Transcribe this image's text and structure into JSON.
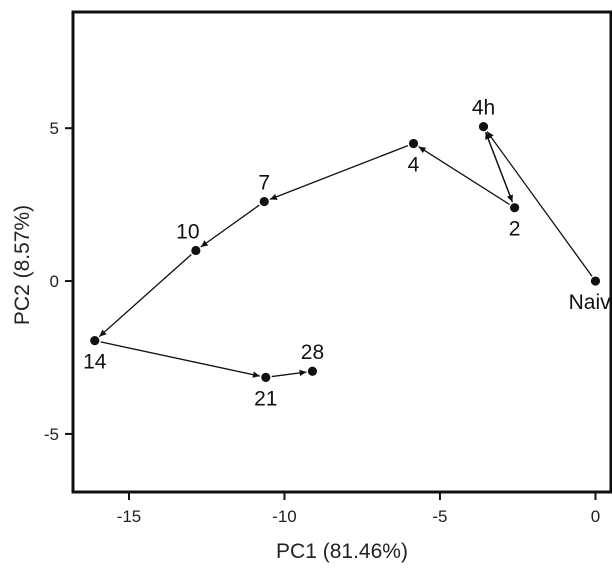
{
  "chart_data": {
    "type": "scatter",
    "title": "",
    "xlabel": "PC1 (81.46%)",
    "ylabel": "PC2 (8.57%)",
    "xlim": [
      -16.8,
      0.5
    ],
    "ylim": [
      -6.9,
      8.8
    ],
    "xticks": [
      {
        "value": -15,
        "label": "-15"
      },
      {
        "value": -10,
        "label": "-10"
      },
      {
        "value": -5,
        "label": "-5"
      },
      {
        "value": 0,
        "label": "0"
      }
    ],
    "yticks": [
      {
        "value": 5,
        "label": "5"
      },
      {
        "value": 0,
        "label": "0"
      },
      {
        "value": -5,
        "label": "-5"
      }
    ],
    "grid": false,
    "points": [
      {
        "label": "Naive",
        "x": 0.0,
        "y": 0.0,
        "label_pos": "below"
      },
      {
        "label": "4h",
        "x": -3.6,
        "y": 5.05,
        "label_pos": "above"
      },
      {
        "label": "2",
        "x": -2.6,
        "y": 2.4,
        "label_pos": "below"
      },
      {
        "label": "4",
        "x": -5.85,
        "y": 4.5,
        "label_pos": "below"
      },
      {
        "label": "7",
        "x": -10.65,
        "y": 2.6,
        "label_pos": "above"
      },
      {
        "label": "10",
        "x": -12.85,
        "y": 1.0,
        "label_pos": "above-left"
      },
      {
        "label": "14",
        "x": -16.1,
        "y": -1.95,
        "label_pos": "below"
      },
      {
        "label": "21",
        "x": -10.6,
        "y": -3.15,
        "label_pos": "below"
      },
      {
        "label": "28",
        "x": -9.1,
        "y": -2.95,
        "label_pos": "above"
      }
    ],
    "arrows": [
      {
        "from": "Naive",
        "to": "4h"
      },
      {
        "from": "4h",
        "to": "2"
      },
      {
        "from": "2",
        "to": "4h"
      },
      {
        "from": "2",
        "to": "4"
      },
      {
        "from": "4",
        "to": "7"
      },
      {
        "from": "7",
        "to": "10"
      },
      {
        "from": "10",
        "to": "14"
      },
      {
        "from": "14",
        "to": "21"
      },
      {
        "from": "21",
        "to": "28"
      }
    ],
    "colors": {
      "point": "#111111",
      "arrow": "#111111",
      "axis": "#111111"
    }
  }
}
